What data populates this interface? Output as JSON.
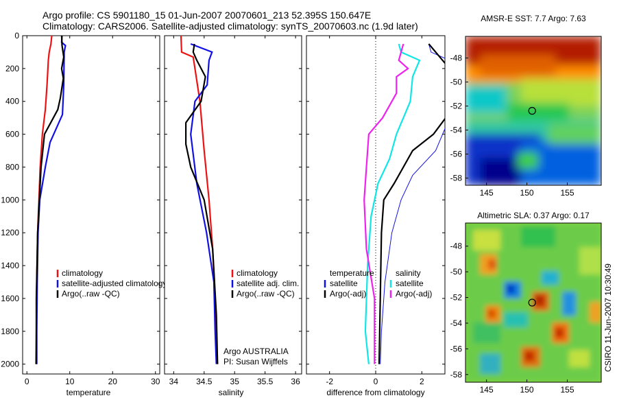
{
  "header": {
    "line1": "Argo profile: CS 5901180_15 01-Jun-2007 20070601_213 52.395S 150.647E",
    "line2": "Climatology: CARS2006. Satellite-adjusted climatology: synTS_20070603.nc (1.9d later)"
  },
  "colors": {
    "red": "#ee1111",
    "blue": "#1010e6",
    "black": "#000000",
    "magenta": "#ee22ee",
    "cyan": "#11e6e6"
  },
  "chart_data": [
    {
      "type": "line",
      "xlabel": "temperature",
      "xlim": [
        -1,
        31
      ],
      "ylim": [
        0,
        2060
      ],
      "y_reversed": true,
      "xticks": [
        0,
        10,
        20,
        30
      ],
      "yticks": [
        0,
        200,
        400,
        600,
        800,
        1000,
        1200,
        1400,
        1600,
        1800,
        2000
      ],
      "series": [
        {
          "name": "climatology",
          "color": "red",
          "x": [
            5.8,
            5.6,
            5.2,
            5.0,
            4.7,
            4.3,
            3.6,
            3.1,
            2.8,
            2.5,
            2.3,
            2.2,
            2.1
          ],
          "y": [
            0,
            50,
            100,
            150,
            300,
            450,
            600,
            800,
            1000,
            1200,
            1500,
            1800,
            2000
          ]
        },
        {
          "name": "satellite-adjusted climatology",
          "color": "blue",
          "x": [
            8.2,
            8.1,
            9.0,
            8.7,
            8.6,
            8.3,
            5.4,
            4.3,
            3.0,
            2.6,
            2.4,
            2.3,
            2.3
          ],
          "y": [
            0,
            40,
            60,
            100,
            300,
            480,
            650,
            800,
            1000,
            1200,
            1500,
            1800,
            2000
          ]
        },
        {
          "name": "Argo(..raw -QC)",
          "color": "black",
          "x": [
            8.1,
            8.2,
            8.6,
            8.1,
            8.5,
            7.8,
            7.2,
            4.1,
            3.3,
            2.9,
            2.5,
            2.2,
            2.2
          ],
          "y": [
            0,
            60,
            130,
            200,
            260,
            380,
            450,
            600,
            800,
            1000,
            1200,
            1600,
            2000
          ]
        }
      ],
      "legend": [
        "climatology",
        "satellite-adjusted climatology",
        "Argo(..raw -QC)"
      ],
      "legend_placement": "lower-right"
    },
    {
      "type": "line",
      "xlabel": "salinity",
      "xlim": [
        33.85,
        36.1
      ],
      "ylim": [
        0,
        2060
      ],
      "y_reversed": true,
      "xticks": [
        34,
        34.5,
        35,
        35.5,
        36
      ],
      "series": [
        {
          "name": "climatology",
          "color": "red",
          "x": [
            34.12,
            34.13,
            34.32,
            34.35,
            34.43,
            34.5,
            34.58,
            34.64,
            34.68,
            34.7,
            34.72
          ],
          "y": [
            0,
            100,
            130,
            200,
            400,
            700,
            1000,
            1300,
            1600,
            1900,
            2000
          ]
        },
        {
          "name": "satellite adj. clim.",
          "color": "blue",
          "x": [
            34.28,
            34.63,
            34.58,
            34.55,
            34.35,
            34.28,
            34.38,
            34.54,
            34.66,
            34.68,
            34.7
          ],
          "y": [
            50,
            100,
            150,
            300,
            400,
            600,
            900,
            1200,
            1500,
            1800,
            2000
          ]
        },
        {
          "name": "Argo(..raw -QC)",
          "color": "black",
          "x": [
            34.34,
            34.32,
            34.38,
            34.52,
            34.45,
            34.2,
            34.2,
            34.28,
            34.5,
            34.64,
            34.7,
            34.72
          ],
          "y": [
            50,
            100,
            150,
            250,
            400,
            530,
            660,
            800,
            1000,
            1300,
            1700,
            2000
          ]
        }
      ],
      "legend": [
        "climatology",
        "satellite adj. clim.",
        "Argo(..raw -QC)"
      ],
      "legend_placement": "lower-right",
      "annotation": [
        "Argo AUSTRALIA",
        "PI: Susan Wijffels"
      ]
    },
    {
      "type": "line",
      "xlabel": "difference from climatology",
      "xlim": [
        -3,
        3
      ],
      "ylim": [
        0,
        2060
      ],
      "y_reversed": true,
      "xticks": [
        -2,
        0,
        2
      ],
      "zero_line": "dotted",
      "series": [
        {
          "name": "temperature satellite",
          "color": "blue",
          "x": [
            2.3,
            2.4,
            3.2,
            3.4,
            3.2,
            2.6,
            1.6,
            1.1,
            0.7,
            0.4,
            0.25,
            0.2
          ],
          "y": [
            50,
            100,
            150,
            300,
            500,
            700,
            850,
            1000,
            1200,
            1500,
            1800,
            2000
          ]
        },
        {
          "name": "temperature Argo(-adj)",
          "color": "black",
          "x": [
            2.3,
            2.6,
            2.9,
            3.2,
            3.3,
            2.5,
            1.6,
            1.2,
            0.8,
            0.35,
            0.25,
            0.2,
            0.15
          ],
          "y": [
            50,
            100,
            150,
            200,
            450,
            600,
            700,
            800,
            900,
            1000,
            1200,
            1600,
            2000
          ]
        },
        {
          "name": "salinity satellite",
          "color": "cyan",
          "x": [
            1.0,
            1.1,
            1.9,
            1.6,
            1.5,
            1.2,
            0.9,
            0.6,
            0.1,
            -0.2,
            -0.35,
            -0.45,
            -0.3
          ],
          "y": [
            50,
            100,
            150,
            250,
            400,
            500,
            600,
            750,
            900,
            1100,
            1400,
            1800,
            2000
          ]
        },
        {
          "name": "salinity Argo(-adj)",
          "color": "magenta",
          "x": [
            1.2,
            1.0,
            1.4,
            0.9,
            0.9,
            0.3,
            -0.3,
            -0.4,
            -0.5,
            -0.4,
            -0.05,
            -0.05
          ],
          "y": [
            50,
            150,
            200,
            250,
            350,
            500,
            600,
            800,
            1000,
            1300,
            1600,
            2000
          ]
        }
      ],
      "legend_columns": [
        {
          "title": "temperature",
          "items": [
            {
              "label": "satellite",
              "color": "blue"
            },
            {
              "label": "Argo(-adj)",
              "color": "black"
            }
          ]
        },
        {
          "title": "salinity",
          "items": [
            {
              "label": "satellite",
              "color": "cyan"
            },
            {
              "label": "Argo(-adj)",
              "color": "magenta"
            }
          ]
        }
      ]
    },
    {
      "type": "heatmap",
      "title": "AMSR-E SST: 7.7  Argo: 7.63",
      "xlim": [
        142.4,
        159.2
      ],
      "ylim": [
        -58.6,
        -46.2
      ],
      "xticks": [
        145,
        150,
        155
      ],
      "yticks": [
        -48,
        -50,
        -52,
        -54,
        -56,
        -58
      ],
      "marker": [
        150.65,
        -52.4
      ]
    },
    {
      "type": "heatmap",
      "title": "Altimetric SLA: 0.37  Argo: 0.17",
      "xlim": [
        142.4,
        159.2
      ],
      "ylim": [
        -58.6,
        -46.2
      ],
      "xticks": [
        145,
        150,
        155
      ],
      "yticks": [
        -48,
        -50,
        -52,
        -54,
        -56,
        -58
      ],
      "marker": [
        150.65,
        -52.4
      ]
    }
  ],
  "footer_vertical": "CSIRO 11-Jun-2007 10:30:49"
}
